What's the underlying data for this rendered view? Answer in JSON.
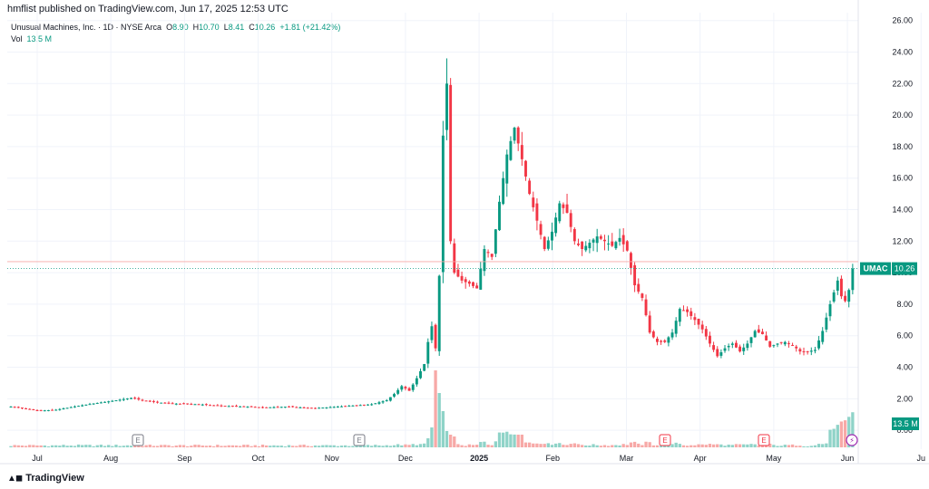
{
  "header": {
    "publisher": "hmflist published on TradingView.com, Jun 17, 2025 12:53 UTC",
    "symbol_desc": "Unusual Machines, Inc. · 1D · NYSE Arca",
    "open_label": "O",
    "open": "8.90",
    "high_label": "H",
    "high": "10.70",
    "low_label": "L",
    "low": "8.41",
    "close_label": "C",
    "close": "10.26",
    "change": "+1.81 (+21.42%)",
    "vol_label": "Vol",
    "vol": "13.5 M"
  },
  "brand": "TradingView",
  "colors": {
    "up": "#089981",
    "down": "#f23645",
    "up_vol": "#8fd3c8",
    "down_vol": "#f7a9a7",
    "grid": "#f0f3fa",
    "text": "#131722"
  },
  "chart_data": {
    "type": "candlestick",
    "ylim": [
      -1.2,
      26.5
    ],
    "y_ticks": [
      "0.00",
      "2.00",
      "4.00",
      "6.00",
      "8.00",
      "10.00",
      "12.00",
      "14.00",
      "16.00",
      "18.00",
      "20.00",
      "22.00",
      "24.00",
      "26.00"
    ],
    "x_ticks": [
      {
        "label": "Jul",
        "month": 6
      },
      {
        "label": "Aug",
        "month": 7
      },
      {
        "label": "Sep",
        "month": 8
      },
      {
        "label": "Oct",
        "month": 9
      },
      {
        "label": "Nov",
        "month": 10
      },
      {
        "label": "Dec",
        "month": 11
      },
      {
        "label": "2025",
        "month": 12
      },
      {
        "label": "Feb",
        "month": 13
      },
      {
        "label": "Mar",
        "month": 14
      },
      {
        "label": "Apr",
        "month": 15
      },
      {
        "label": "May",
        "month": 16
      },
      {
        "label": "Jun",
        "month": 17
      },
      {
        "label": "Ju",
        "month": 18
      }
    ],
    "last_price_tag": {
      "symbol": "UMAC",
      "value": "10.26"
    },
    "volume_tag": "13.5 M",
    "earnings_markers": [
      "E",
      "E",
      "E",
      "E"
    ],
    "anchors": [
      [
        0,
        1.5
      ],
      [
        4,
        1.35
      ],
      [
        8,
        1.25
      ],
      [
        12,
        1.3
      ],
      [
        18,
        1.55
      ],
      [
        22,
        1.7
      ],
      [
        28,
        1.9
      ],
      [
        32,
        2.05
      ],
      [
        36,
        1.85
      ],
      [
        42,
        1.7
      ],
      [
        50,
        1.65
      ],
      [
        56,
        1.55
      ],
      [
        62,
        1.5
      ],
      [
        68,
        1.45
      ],
      [
        74,
        1.5
      ],
      [
        80,
        1.4
      ],
      [
        84,
        1.45
      ],
      [
        90,
        1.55
      ],
      [
        96,
        1.65
      ],
      [
        100,
        1.9
      ],
      [
        102,
        2.3
      ],
      [
        104,
        2.8
      ],
      [
        106,
        2.5
      ],
      [
        108,
        3.3
      ],
      [
        110,
        4.2
      ],
      [
        111,
        5.6
      ],
      [
        112,
        6.6
      ],
      [
        113,
        5.2
      ],
      [
        114,
        9.8
      ],
      [
        115,
        18.7
      ],
      [
        116,
        22.0
      ],
      [
        117,
        12.0
      ],
      [
        118,
        10.0
      ],
      [
        120,
        9.5
      ],
      [
        122,
        9.3
      ],
      [
        124,
        9.0
      ],
      [
        126,
        11.5
      ],
      [
        128,
        11.0
      ],
      [
        130,
        14.5
      ],
      [
        132,
        17.5
      ],
      [
        134,
        19.2
      ],
      [
        136,
        17.2
      ],
      [
        138,
        15.0
      ],
      [
        140,
        13.3
      ],
      [
        142,
        11.5
      ],
      [
        144,
        12.6
      ],
      [
        146,
        14.4
      ],
      [
        148,
        13.8
      ],
      [
        150,
        12.0
      ],
      [
        152,
        11.5
      ],
      [
        154,
        11.9
      ],
      [
        156,
        12.3
      ],
      [
        158,
        12.0
      ],
      [
        160,
        11.7
      ],
      [
        162,
        12.2
      ],
      [
        164,
        11.4
      ],
      [
        166,
        9.2
      ],
      [
        168,
        8.4
      ],
      [
        170,
        6.2
      ],
      [
        172,
        5.6
      ],
      [
        174,
        5.6
      ],
      [
        176,
        6.2
      ],
      [
        178,
        7.7
      ],
      [
        180,
        7.5
      ],
      [
        182,
        7.0
      ],
      [
        184,
        6.4
      ],
      [
        186,
        5.5
      ],
      [
        188,
        4.7
      ],
      [
        190,
        5.2
      ],
      [
        192,
        5.5
      ],
      [
        194,
        5.0
      ],
      [
        196,
        5.5
      ],
      [
        198,
        6.3
      ],
      [
        200,
        6.1
      ],
      [
        202,
        5.3
      ],
      [
        204,
        5.5
      ],
      [
        206,
        5.6
      ],
      [
        208,
        5.4
      ],
      [
        210,
        5.0
      ],
      [
        212,
        5.0
      ],
      [
        214,
        5.1
      ],
      [
        216,
        6.3
      ],
      [
        218,
        8.0
      ],
      [
        220,
        9.5
      ],
      [
        221,
        8.5
      ],
      [
        222,
        8.2
      ],
      [
        223,
        8.9
      ],
      [
        224,
        10.26
      ]
    ]
  }
}
